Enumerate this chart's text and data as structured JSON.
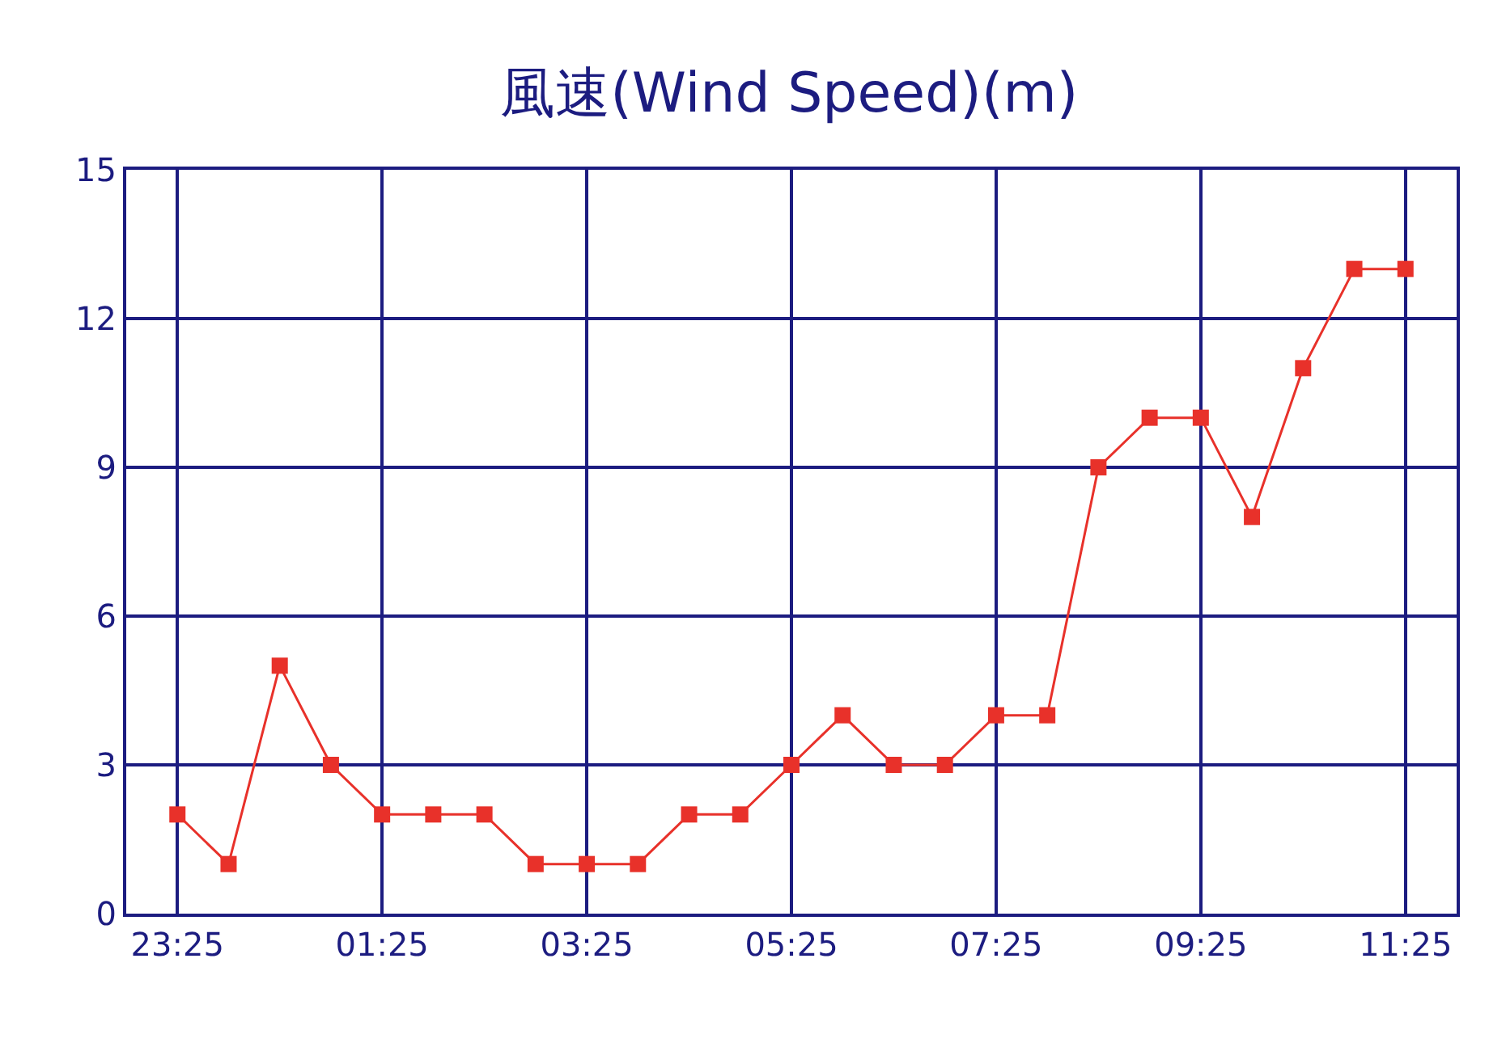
{
  "chart_data": {
    "type": "line",
    "title": "風速(Wind Speed)(m)",
    "categories": [
      "23:25",
      null,
      null,
      null,
      "01:25",
      null,
      null,
      null,
      "03:25",
      null,
      null,
      null,
      "05:25",
      null,
      null,
      null,
      "07:25",
      null,
      null,
      null,
      "09:25",
      null,
      null,
      null,
      "11:25"
    ],
    "series": [
      {
        "color": "#e8312a",
        "values": [
          2,
          1,
          5,
          3,
          2,
          2,
          2,
          1,
          1,
          1,
          2,
          2,
          3,
          4,
          3,
          3,
          4,
          4,
          9,
          10,
          10,
          8,
          11,
          13,
          13
        ]
      }
    ],
    "ylim": [
      0,
      15
    ],
    "yticks": [
      0,
      3,
      6,
      9,
      12,
      15
    ],
    "grid": true,
    "marker": "square",
    "line_style": "solid"
  }
}
